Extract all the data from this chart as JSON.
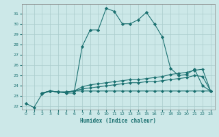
{
  "xlabel": "Humidex (Indice chaleur)",
  "bg_color": "#cce8e8",
  "grid_color": "#aacccc",
  "line_color": "#1a7070",
  "xlim": [
    -0.5,
    23.5
  ],
  "ylim": [
    21.7,
    31.9
  ],
  "xticks": [
    0,
    1,
    2,
    3,
    4,
    5,
    6,
    7,
    8,
    9,
    10,
    11,
    12,
    13,
    14,
    15,
    16,
    17,
    18,
    19,
    20,
    21,
    22,
    23
  ],
  "yticks": [
    22,
    23,
    24,
    25,
    26,
    27,
    28,
    29,
    30,
    31
  ],
  "series1_x": [
    0,
    1,
    2,
    3,
    4,
    5,
    6,
    7,
    8,
    9,
    10,
    11,
    12,
    13,
    14,
    15,
    16,
    17,
    18,
    19,
    20,
    21,
    22,
    23
  ],
  "series1_y": [
    22.3,
    21.9,
    23.2,
    23.5,
    23.4,
    23.3,
    23.3,
    27.8,
    29.4,
    29.4,
    31.5,
    31.2,
    30.0,
    30.0,
    30.4,
    31.1,
    30.0,
    28.7,
    25.7,
    25.0,
    25.1,
    25.6,
    24.0,
    23.5
  ],
  "series2_x": [
    2,
    3,
    4,
    5,
    6,
    7,
    8,
    9,
    10,
    11,
    12,
    13,
    14,
    15,
    16,
    17,
    18,
    19,
    20,
    21,
    22,
    23
  ],
  "series2_y": [
    23.3,
    23.5,
    23.4,
    23.4,
    23.5,
    23.9,
    24.1,
    24.2,
    24.3,
    24.4,
    24.5,
    24.6,
    24.6,
    24.7,
    24.8,
    24.9,
    25.1,
    25.2,
    25.3,
    25.5,
    25.6,
    23.5
  ],
  "series3_x": [
    2,
    3,
    4,
    5,
    6,
    7,
    8,
    9,
    10,
    11,
    12,
    13,
    14,
    15,
    16,
    17,
    18,
    19,
    20,
    21,
    22,
    23
  ],
  "series3_y": [
    23.3,
    23.5,
    23.4,
    23.4,
    23.5,
    23.7,
    23.8,
    23.9,
    24.0,
    24.1,
    24.2,
    24.3,
    24.3,
    24.4,
    24.4,
    24.5,
    24.6,
    24.7,
    24.8,
    25.0,
    24.9,
    23.5
  ],
  "series4_x": [
    2,
    3,
    4,
    5,
    6,
    7,
    8,
    9,
    10,
    11,
    12,
    13,
    14,
    15,
    16,
    17,
    18,
    19,
    20,
    21,
    22,
    23
  ],
  "series4_y": [
    23.3,
    23.5,
    23.4,
    23.4,
    23.5,
    23.5,
    23.5,
    23.5,
    23.5,
    23.5,
    23.5,
    23.5,
    23.5,
    23.5,
    23.5,
    23.5,
    23.5,
    23.5,
    23.5,
    23.5,
    23.5,
    23.5
  ]
}
